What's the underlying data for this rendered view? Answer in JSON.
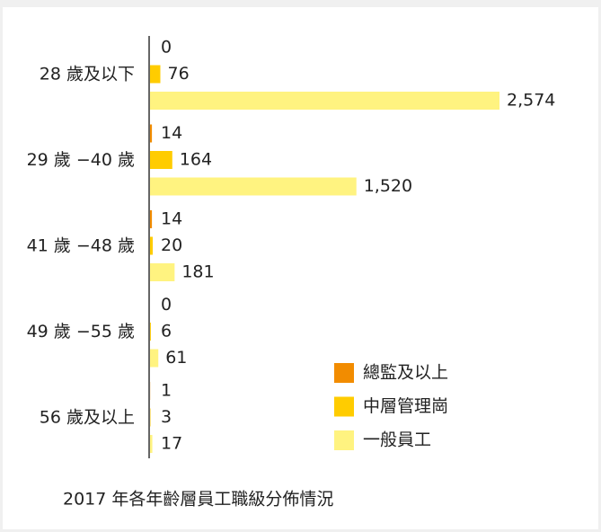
{
  "chart_data": {
    "type": "bar",
    "orientation": "horizontal",
    "title": "2017 年各年齡層員工職級分佈情況",
    "categories": [
      "28 歲及以下",
      "29 歲 −40 歲",
      "41 歲 −48 歲",
      "49 歲 −55 歲",
      "56 歲及以上"
    ],
    "series": [
      {
        "name": "總監及以上",
        "color": "#f28c00",
        "values": [
          0,
          14,
          14,
          0,
          1
        ]
      },
      {
        "name": "中層管理崗",
        "color": "#ffcc00",
        "values": [
          76,
          164,
          20,
          6,
          3
        ]
      },
      {
        "name": "一般員工",
        "color": "#fff380",
        "values": [
          2574,
          1520,
          181,
          61,
          17
        ],
        "value_labels": [
          "2,574",
          "1,520",
          "181",
          "61",
          "17"
        ]
      }
    ]
  }
}
